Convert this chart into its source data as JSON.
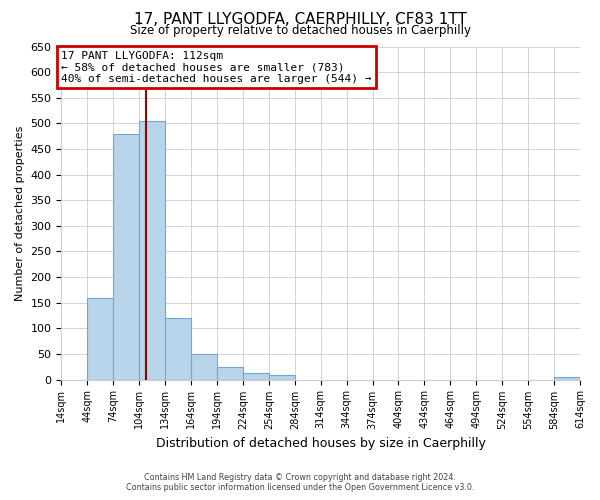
{
  "title": "17, PANT LLYGODFA, CAERPHILLY, CF83 1TT",
  "subtitle": "Size of property relative to detached houses in Caerphilly",
  "xlabel": "Distribution of detached houses by size in Caerphilly",
  "ylabel": "Number of detached properties",
  "bin_edges": [
    14,
    44,
    74,
    104,
    134,
    164,
    194,
    224,
    254,
    284,
    314,
    344,
    374,
    404,
    434,
    464,
    494,
    524,
    554,
    584,
    614
  ],
  "bar_heights": [
    0,
    160,
    480,
    505,
    120,
    50,
    25,
    12,
    8,
    0,
    0,
    0,
    0,
    0,
    0,
    0,
    0,
    0,
    0,
    5
  ],
  "bar_color": "#b8d4ea",
  "bar_edge_color": "#6aaad4",
  "ylim": [
    0,
    650
  ],
  "yticks": [
    0,
    50,
    100,
    150,
    200,
    250,
    300,
    350,
    400,
    450,
    500,
    550,
    600,
    650
  ],
  "vline_x": 112,
  "vline_color": "#990000",
  "annotation_title": "17 PANT LLYGODFA: 112sqm",
  "annotation_line1": "← 58% of detached houses are smaller (783)",
  "annotation_line2": "40% of semi-detached houses are larger (544) →",
  "annotation_box_color": "#ffffff",
  "annotation_box_edge": "#cc0000",
  "footer1": "Contains HM Land Registry data © Crown copyright and database right 2024.",
  "footer2": "Contains public sector information licensed under the Open Government Licence v3.0.",
  "background_color": "#ffffff",
  "grid_color": "#cccccc",
  "tick_labels": [
    "14sqm",
    "44sqm",
    "74sqm",
    "104sqm",
    "134sqm",
    "164sqm",
    "194sqm",
    "224sqm",
    "254sqm",
    "284sqm",
    "314sqm",
    "344sqm",
    "374sqm",
    "404sqm",
    "434sqm",
    "464sqm",
    "494sqm",
    "524sqm",
    "554sqm",
    "584sqm",
    "614sqm"
  ]
}
